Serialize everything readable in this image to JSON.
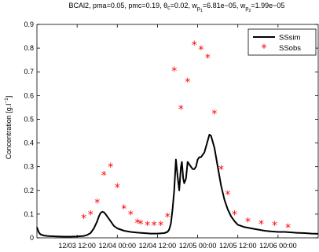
{
  "chart_data": {
    "type": "line",
    "title": {
      "prefix": "BCAl2, pma=0.05, pmc=0.19, θ",
      "theta_sub": "c",
      "mid": "=0.02, w",
      "w1_sub": "p",
      "w1_subsub": "1",
      "w1_val": "=6.81e−05, w",
      "w2_sub": "p",
      "w2_subsub": "2",
      "w2_val": "=1.99e−05"
    },
    "ylabel": {
      "main": "Concentration [g.l",
      "sup": "−1",
      "end": "]"
    },
    "xlabel": "",
    "ylim": [
      0,
      0.9
    ],
    "xlim": [
      0,
      84
    ],
    "yticks": [
      0,
      0.1,
      0.2,
      0.3,
      0.4,
      0.5,
      0.6,
      0.7,
      0.8,
      0.9
    ],
    "ytick_labels": [
      "0",
      "0.1",
      "0.2",
      "0.3",
      "0.4",
      "0.5",
      "0.6",
      "0.7",
      "0.8",
      "0.9"
    ],
    "xticks": [
      12,
      24,
      36,
      48,
      60,
      72
    ],
    "xtick_labels": [
      "12/03 12:00",
      "12/04 00:00",
      "12/04 12:00",
      "12/05 00:00",
      "12/05 12:00",
      "12/06 00:00"
    ],
    "grid": false,
    "legend_position": "top-right",
    "series": [
      {
        "name": "SSsim",
        "style": "line",
        "color": "#000000",
        "x": [
          0,
          0.5,
          1,
          2,
          3,
          4,
          6,
          8,
          10,
          12,
          14,
          15,
          16,
          17,
          18,
          18.5,
          19,
          19.5,
          20,
          20.5,
          21,
          22,
          23,
          24,
          26,
          28,
          30,
          32,
          34,
          36,
          38,
          39,
          39.5,
          40,
          40.5,
          41,
          41.5,
          42,
          42.5,
          43,
          43.3,
          43.7,
          44,
          44.5,
          45,
          45.5,
          46,
          46.5,
          47,
          47.5,
          48,
          48.5,
          49,
          50,
          51,
          51.5,
          52,
          53,
          54,
          55,
          56,
          57,
          58,
          59,
          60,
          62,
          64,
          66,
          68,
          70,
          72,
          74,
          76,
          78,
          80,
          82,
          84
        ],
        "y": [
          0.045,
          0.025,
          0.015,
          0.01,
          0.008,
          0.007,
          0.006,
          0.005,
          0.005,
          0.006,
          0.008,
          0.012,
          0.02,
          0.04,
          0.07,
          0.09,
          0.105,
          0.11,
          0.108,
          0.1,
          0.09,
          0.07,
          0.05,
          0.04,
          0.03,
          0.025,
          0.022,
          0.02,
          0.018,
          0.018,
          0.02,
          0.025,
          0.035,
          0.06,
          0.12,
          0.2,
          0.33,
          0.26,
          0.2,
          0.3,
          0.32,
          0.25,
          0.23,
          0.25,
          0.32,
          0.31,
          0.3,
          0.29,
          0.29,
          0.3,
          0.33,
          0.34,
          0.34,
          0.36,
          0.41,
          0.435,
          0.43,
          0.38,
          0.3,
          0.22,
          0.16,
          0.12,
          0.09,
          0.07,
          0.055,
          0.045,
          0.04,
          0.035,
          0.03,
          0.027,
          0.025,
          0.025,
          0.023,
          0.021,
          0.02,
          0.018,
          0.017
        ]
      },
      {
        "name": "SSobs",
        "style": "markers",
        "marker": "*",
        "color": "#ff0000",
        "x": [
          14,
          16,
          18,
          20,
          22,
          24,
          26,
          28,
          30,
          31,
          33,
          35,
          37,
          39,
          41,
          43,
          45,
          47,
          49,
          51,
          53,
          55,
          57,
          59,
          63,
          67,
          71,
          75
        ],
        "y": [
          0.085,
          0.1,
          0.15,
          0.265,
          0.3,
          0.215,
          0.125,
          0.1,
          0.065,
          0.06,
          0.055,
          0.055,
          0.055,
          0.09,
          0.705,
          0.545,
          0.66,
          0.815,
          0.795,
          0.76,
          0.525,
          0.29,
          0.185,
          0.1,
          0.07,
          0.06,
          0.055,
          0.045
        ]
      }
    ]
  }
}
